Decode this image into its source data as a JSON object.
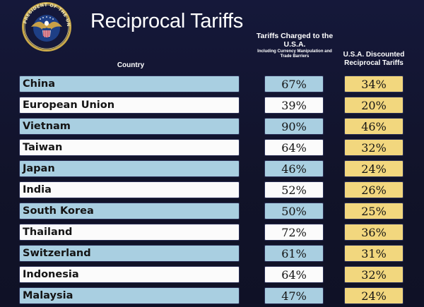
{
  "header": {
    "title": "Reciprocal Tariffs",
    "seal_text": "SEAL OF THE PRESIDENT OF THE UNITED STATES"
  },
  "columns": {
    "country": "Country",
    "charged_main": "Tariffs Charged to the U.S.A.",
    "charged_sub": "Including Currency Manipulation and Trade Barriers",
    "discounted": "U.S.A. Discounted Reciprocal Tariffs"
  },
  "rows": [
    {
      "country": "China",
      "charged": "67%",
      "discounted": "34%"
    },
    {
      "country": "European Union",
      "charged": "39%",
      "discounted": "20%"
    },
    {
      "country": "Vietnam",
      "charged": "90%",
      "discounted": "46%"
    },
    {
      "country": "Taiwan",
      "charged": "64%",
      "discounted": "32%"
    },
    {
      "country": "Japan",
      "charged": "46%",
      "discounted": "24%"
    },
    {
      "country": "India",
      "charged": "52%",
      "discounted": "26%"
    },
    {
      "country": "South Korea",
      "charged": "50%",
      "discounted": "25%"
    },
    {
      "country": "Thailand",
      "charged": "72%",
      "discounted": "36%"
    },
    {
      "country": "Switzerland",
      "charged": "61%",
      "discounted": "31%"
    },
    {
      "country": "Indonesia",
      "charged": "64%",
      "discounted": "32%"
    },
    {
      "country": "Malaysia",
      "charged": "47%",
      "discounted": "24%"
    }
  ]
}
